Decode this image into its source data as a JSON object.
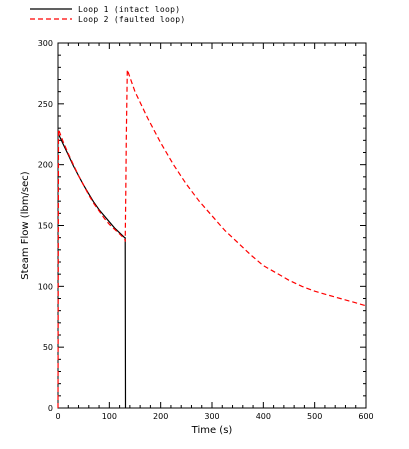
{
  "chart_data": {
    "type": "line",
    "title": "",
    "xlabel": "Time  (s)",
    "ylabel": "Steam Flow  (lbm/sec)",
    "xlim": [
      0,
      600
    ],
    "ylim": [
      0,
      300
    ],
    "x_ticks": [
      0,
      100,
      200,
      300,
      400,
      500,
      600
    ],
    "y_ticks": [
      0,
      50,
      100,
      150,
      200,
      250,
      300
    ],
    "x_tick_labels": [
      "0",
      "100",
      "200",
      "300",
      "400",
      "500",
      "600"
    ],
    "y_tick_labels": [
      "0",
      "50",
      "100",
      "150",
      "200",
      "250",
      "300"
    ],
    "grid": false,
    "legend_position": "top-left, above plot",
    "series": [
      {
        "name": "Loop 1  (intact loop)",
        "color": "#000000",
        "style": "solid",
        "x": [
          0,
          10,
          20,
          30,
          40,
          50,
          60,
          70,
          80,
          90,
          100,
          110,
          120,
          130,
          131,
          131.5
        ],
        "y": [
          226,
          217,
          208,
          199,
          191,
          183,
          176,
          169,
          163,
          158,
          153,
          148,
          144,
          140,
          140,
          0
        ]
      },
      {
        "name": "Loop 2  (faulted loop)",
        "color": "#ff0000",
        "style": "dashed",
        "x": [
          0,
          1,
          10,
          20,
          30,
          40,
          50,
          60,
          70,
          80,
          90,
          100,
          110,
          120,
          130,
          131,
          132,
          133,
          135,
          150,
          175,
          200,
          225,
          250,
          275,
          300,
          325,
          350,
          375,
          400,
          425,
          450,
          475,
          500,
          525,
          550,
          575,
          600
        ],
        "y": [
          0,
          229,
          219,
          209,
          200,
          191,
          183,
          175,
          168,
          162,
          156,
          151,
          147,
          143,
          139,
          137,
          178,
          222,
          278,
          260,
          238,
          218,
          200,
          184,
          170,
          158,
          146,
          136,
          126,
          117,
          111,
          105,
          100,
          96,
          93,
          90,
          87,
          84
        ]
      }
    ]
  }
}
